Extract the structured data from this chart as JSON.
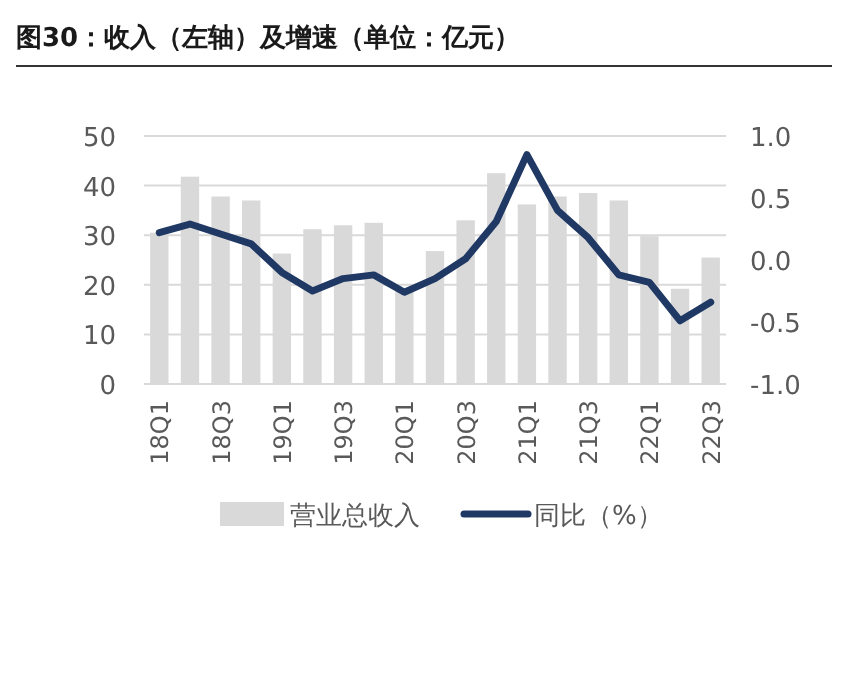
{
  "chart_data": {
    "type": "bar",
    "title": "图30：收入（左轴）及增速（单位：亿元）",
    "categories": [
      "18Q1",
      null,
      "18Q3",
      null,
      "19Q1",
      null,
      "19Q3",
      null,
      "20Q1",
      null,
      "20Q3",
      null,
      "21Q1",
      null,
      "21Q3",
      null,
      "22Q1",
      null,
      "22Q3"
    ],
    "series": [
      {
        "name": "营业总收入",
        "color": "#d9d9d9",
        "values": [
          30.5,
          41.8,
          37.8,
          37,
          26.3,
          31.2,
          32,
          32.5,
          18.7,
          26.8,
          33,
          42.5,
          36.2,
          37.8,
          38.5,
          37,
          29.8,
          19.2,
          25.5
        ]
      },
      {
        "name": "同比（%）",
        "type": "line",
        "axis": "y2",
        "color": "#1f3864",
        "values": [
          0.22,
          0.29,
          0.21,
          0.13,
          -0.1,
          -0.25,
          -0.15,
          -0.12,
          -0.26,
          -0.15,
          0.01,
          0.31,
          0.85,
          0.4,
          0.18,
          -0.12,
          -0.18,
          -0.49,
          -0.34
        ]
      }
    ],
    "ylim": [
      0,
      50
    ],
    "yticks": [
      0,
      10,
      20,
      30,
      40,
      50
    ],
    "y2lim": [
      -1,
      1
    ],
    "y2ticks": [
      {
        "value": -1,
        "label": "-1.0"
      },
      {
        "value": -0.5,
        "label": "-0.5"
      },
      {
        "value": 0,
        "label": "0.0"
      },
      {
        "value": 0.5,
        "label": "0.5"
      },
      {
        "value": 1,
        "label": "1.0"
      }
    ],
    "grid": "y",
    "legend": "bottom"
  }
}
